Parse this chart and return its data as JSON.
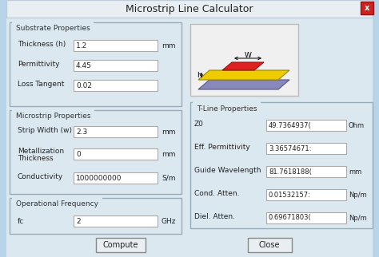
{
  "title": "Microstrip Line Calculator",
  "outer_bg": "#b8d4e8",
  "inner_bg": "#dce8f0",
  "titlebar_bg": "#dce8f0",
  "field_bg": "#ffffff",
  "substrate_label": "Substrate Properties",
  "substrate_fields": [
    {
      "label": "Thickness (h)",
      "value": "1.2",
      "unit": "mm"
    },
    {
      "label": "Permittivity",
      "value": "4.45",
      "unit": ""
    },
    {
      "label": "Loss Tangent",
      "value": "0.02",
      "unit": ""
    }
  ],
  "microstrip_label": "Microstrip Properties",
  "microstrip_fields": [
    {
      "label": "Strip Width (w)",
      "value": "2.3",
      "unit": "mm"
    },
    {
      "label": "Metallization\nThickness",
      "value": "0",
      "unit": "mm"
    },
    {
      "label": "Conductivity",
      "value": "1000000000",
      "unit": "S/m"
    }
  ],
  "freq_label": "Operational Frequency",
  "freq_fields": [
    {
      "label": "fc",
      "value": "2",
      "unit": "GHz"
    }
  ],
  "tline_label": "T-Line Properties",
  "tline_fields": [
    {
      "label": "Z0",
      "value": "49.7364937(",
      "unit": "Ohm"
    },
    {
      "label": "Eff. Permittivity",
      "value": "3.36574671:",
      "unit": ""
    },
    {
      "label": "Guide Wavelength",
      "value": "81.7618188(",
      "unit": "mm"
    },
    {
      "label": "Cond. Atten.",
      "value": "0.01532157:",
      "unit": "Np/m"
    },
    {
      "label": "Diel. Atten.",
      "value": "0.69671803(",
      "unit": "Np/m"
    }
  ],
  "compute_btn": "Compute",
  "close_btn": "Close"
}
